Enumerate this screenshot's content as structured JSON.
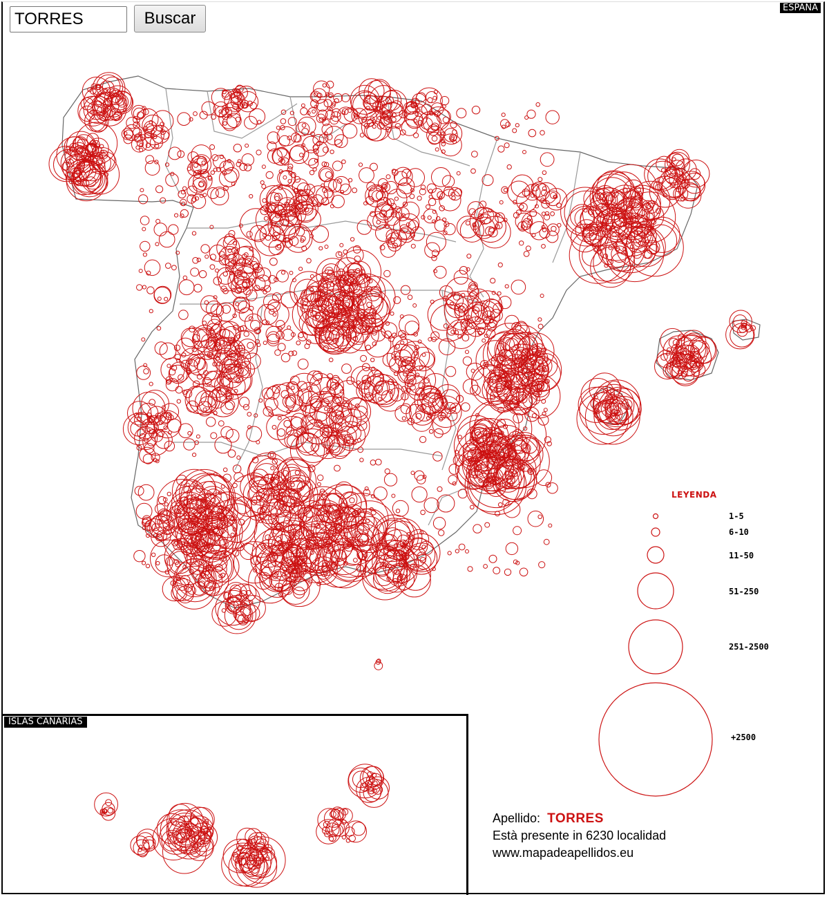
{
  "search": {
    "value": "TORRES",
    "button_label": "Buscar"
  },
  "map": {
    "region_tag": "ESPAÑA",
    "inset_tag": "ISLAS CANARIAS",
    "marker_color": "#cc1111",
    "border_color": "#999999"
  },
  "legend": {
    "title": "LEYENDA",
    "items": [
      {
        "label": "1-5"
      },
      {
        "label": "6-10"
      },
      {
        "label": "11-50"
      },
      {
        "label": "51-250"
      },
      {
        "label": "251-2500"
      },
      {
        "label": "+2500"
      }
    ]
  },
  "info": {
    "surname_label": "Apellido:",
    "surname": "TORRES",
    "presence_text": "Està presente in 6230 localidad",
    "website": "www.mapadeapellidos.eu"
  }
}
